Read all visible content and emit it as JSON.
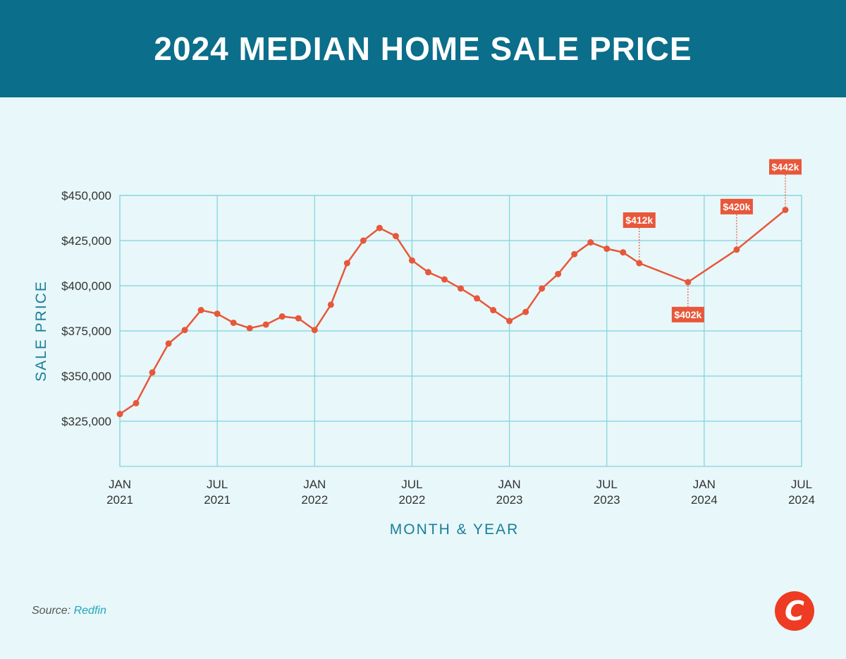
{
  "header": {
    "title": "2024 MEDIAN HOME SALE PRICE"
  },
  "source": {
    "label": "Source:",
    "name": "Redfin"
  },
  "logo": {
    "letter": "C",
    "icon": "brand-logo-icon"
  },
  "colors": {
    "header_bg": "#0b6e8a",
    "background": "#e8f7f9",
    "line": "#e8573a",
    "grid": "#7fd3e0",
    "axis_title": "#1a7f99",
    "label_bg": "#e8573a"
  },
  "chart_data": {
    "type": "line",
    "title": "2024 MEDIAN HOME SALE PRICE",
    "xlabel": "MONTH & YEAR",
    "ylabel": "SALE PRICE",
    "x_ticks": [
      {
        "month": 0,
        "line1": "JAN",
        "line2": "2021"
      },
      {
        "month": 6,
        "line1": "JUL",
        "line2": "2021"
      },
      {
        "month": 12,
        "line1": "JAN",
        "line2": "2022"
      },
      {
        "month": 18,
        "line1": "JUL",
        "line2": "2022"
      },
      {
        "month": 24,
        "line1": "JAN",
        "line2": "2023"
      },
      {
        "month": 30,
        "line1": "JUL",
        "line2": "2023"
      },
      {
        "month": 36,
        "line1": "JAN",
        "line2": "2024"
      },
      {
        "month": 42,
        "line1": "JUL",
        "line2": "2024"
      }
    ],
    "y_ticks": [
      {
        "value": 325000,
        "label": "$325,000"
      },
      {
        "value": 350000,
        "label": "$350,000"
      },
      {
        "value": 375000,
        "label": "$375,000"
      },
      {
        "value": 400000,
        "label": "$400,000"
      },
      {
        "value": 425000,
        "label": "$425,000"
      },
      {
        "value": 450000,
        "label": "$450,000"
      }
    ],
    "ylim": [
      300000,
      450000
    ],
    "xlim": [
      "2021-01",
      "2024-07"
    ],
    "grid": true,
    "series": [
      {
        "points": [
          {
            "date": "2021-01",
            "value": 329000
          },
          {
            "date": "2021-02",
            "value": 335000
          },
          {
            "date": "2021-03",
            "value": 352000
          },
          {
            "date": "2021-04",
            "value": 368000
          },
          {
            "date": "2021-05",
            "value": 375500
          },
          {
            "date": "2021-06",
            "value": 386500
          },
          {
            "date": "2021-07",
            "value": 384500
          },
          {
            "date": "2021-08",
            "value": 379500
          },
          {
            "date": "2021-09",
            "value": 376500
          },
          {
            "date": "2021-10",
            "value": 378500
          },
          {
            "date": "2021-11",
            "value": 383000
          },
          {
            "date": "2021-12",
            "value": 382000
          },
          {
            "date": "2022-01",
            "value": 375500
          },
          {
            "date": "2022-02",
            "value": 389500
          },
          {
            "date": "2022-03",
            "value": 412500
          },
          {
            "date": "2022-04",
            "value": 425000
          },
          {
            "date": "2022-05",
            "value": 432000
          },
          {
            "date": "2022-06",
            "value": 427500
          },
          {
            "date": "2022-07",
            "value": 414000
          },
          {
            "date": "2022-08",
            "value": 407500
          },
          {
            "date": "2022-09",
            "value": 403500
          },
          {
            "date": "2022-10",
            "value": 398500
          },
          {
            "date": "2022-11",
            "value": 393000
          },
          {
            "date": "2022-12",
            "value": 386500
          },
          {
            "date": "2023-01",
            "value": 380500
          },
          {
            "date": "2023-02",
            "value": 385500
          },
          {
            "date": "2023-03",
            "value": 398500
          },
          {
            "date": "2023-04",
            "value": 406500
          },
          {
            "date": "2023-05",
            "value": 417500
          },
          {
            "date": "2023-06",
            "value": 424000
          },
          {
            "date": "2023-07",
            "value": 420500
          },
          {
            "date": "2023-08",
            "value": 418500
          },
          {
            "date": "2023-09",
            "value": 412500
          },
          {
            "date": "2023-12",
            "value": 402000
          },
          {
            "date": "2024-03",
            "value": 420000
          },
          {
            "date": "2024-06",
            "value": 442000
          }
        ]
      }
    ],
    "annotations": [
      {
        "date": "2023-09",
        "value": 412500,
        "label": "$412k",
        "position": "above"
      },
      {
        "date": "2023-12",
        "value": 402000,
        "label": "$402k",
        "position": "below"
      },
      {
        "date": "2024-03",
        "value": 420000,
        "label": "$420k",
        "position": "above"
      },
      {
        "date": "2024-06",
        "value": 442000,
        "label": "$442k",
        "position": "above"
      }
    ]
  }
}
